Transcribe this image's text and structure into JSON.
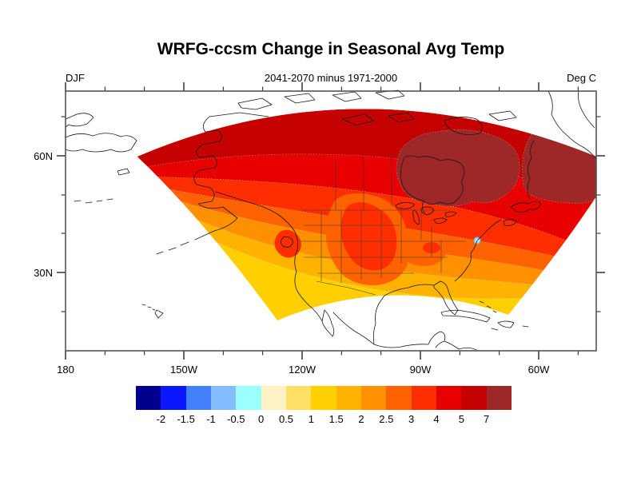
{
  "header": {
    "title": "WRFG-ccsm Change in Seasonal Avg Temp",
    "season": "DJF",
    "subtitle": "2041-2070 minus 1971-2000",
    "units": "Deg C"
  },
  "x_axis": {
    "ticks": [
      "180",
      "150W",
      "120W",
      "90W",
      "60W"
    ]
  },
  "y_axis": {
    "ticks": [
      "60N",
      "30N"
    ]
  },
  "colorbar": {
    "labels": [
      "-2",
      "-1.5",
      "-1",
      "-0.5",
      "0",
      "0.5",
      "1",
      "1.5",
      "2",
      "2.5",
      "3",
      "4",
      "5",
      "7"
    ],
    "colors": [
      "#00008F",
      "#0B17FF",
      "#4182FC",
      "#85BCFF",
      "#9BFFFF",
      "#FFF3C6",
      "#FFDF66",
      "#FFCF00",
      "#FFB300",
      "#FF9100",
      "#FF6200",
      "#FF2E00",
      "#E80000",
      "#C50000",
      "#9E2727"
    ]
  },
  "chart_data": {
    "type": "heatmap",
    "subtype": "filled-contour map (Lambert-conformal WRF domain plotted on lat-lon axes)",
    "title": "WRFG-ccsm Change in Seasonal Avg Temp",
    "subtitle": "2041-2070 minus 1971-2000",
    "season": "DJF",
    "units": "Deg C",
    "x_tick_labels": [
      "180",
      "150W",
      "120W",
      "90W",
      "60W"
    ],
    "y_tick_labels": [
      "60N",
      "30N"
    ],
    "contour_levels": [
      -2,
      -1.5,
      -1,
      -0.5,
      0,
      0.5,
      1,
      1.5,
      2,
      2.5,
      3,
      4,
      5,
      7
    ],
    "palette": [
      "#00008F",
      "#0B17FF",
      "#4182FC",
      "#85BCFF",
      "#9BFFFF",
      "#FFF3C6",
      "#FFDF66",
      "#FFCF00",
      "#FFB300",
      "#FF9100",
      "#FF6200",
      "#FF2E00",
      "#E80000",
      "#C50000",
      "#9E2727"
    ],
    "legend_position": "bottom",
    "grid": false,
    "regions": [
      {
        "region": "Arctic Canada, Hudson Bay / Baffin area and far northeast",
        "value_deg_c": "> 7"
      },
      {
        "region": "northern Canada band along top of domain",
        "value_deg_c": "5 to 7"
      },
      {
        "region": "central Canada / Labrador",
        "value_deg_c": "4 to 5"
      },
      {
        "region": "northern US plains, Great Lakes, Rockies patches, south-central US blob",
        "value_deg_c": "3 to 4"
      },
      {
        "region": "most of the continental US interior",
        "value_deg_c": "2.5 to 3"
      },
      {
        "region": "US coasts and northern Mexico",
        "value_deg_c": "2 to 2.5"
      },
      {
        "region": "subtropical Pacific, Gulf of Mexico and Atlantic edges of domain",
        "value_deg_c": "1 to 2"
      },
      {
        "region": "small isolated spot on the coast near New York",
        "value_deg_c": "-1 to 0"
      }
    ]
  }
}
